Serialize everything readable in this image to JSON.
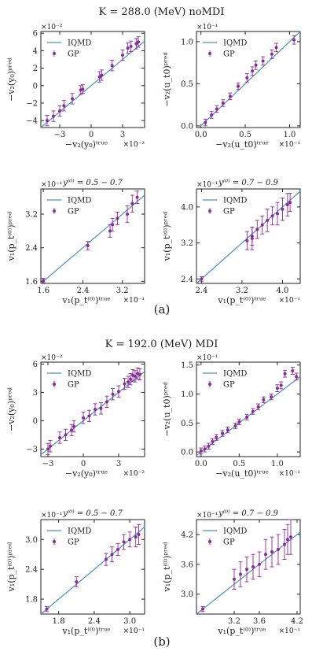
{
  "titles": [
    "K = 288.0 (MeV) noMDI",
    "K = 192.0 (MeV) MDI"
  ],
  "panel_labels": [
    "(a)",
    "(b)"
  ],
  "legend": {
    "line": "IQMD",
    "points": "GP"
  },
  "colors": {
    "line": "#4a90c2",
    "points": "#8b2a9a"
  },
  "chart_data": [
    {
      "type": "scatter",
      "group": "a",
      "xlabel": "−v₂(y₀)ᵗʳᵘᵉ",
      "ylabel": "−v₂(y₀)ᵖʳᵉᵈ",
      "exponent_x": "×10⁻²",
      "exponent_y": "×10⁻²",
      "xlim": [
        -4.8,
        5.1
      ],
      "ylim": [
        -4.8,
        6.2
      ],
      "xticks": [
        -3,
        0,
        3
      ],
      "xtick_labels": [
        "−3",
        "0",
        "3"
      ],
      "yticks": [
        -4,
        -2,
        0,
        2,
        4,
        6
      ],
      "ytick_labels": [
        "−4",
        "−2",
        "0",
        "2",
        "4",
        "6"
      ],
      "diagonal": true,
      "annotation": "",
      "legend_pos": "top-left",
      "points": [
        [
          -4.2,
          -4.0,
          0.6
        ],
        [
          -3.6,
          -3.5,
          0.6
        ],
        [
          -3.0,
          -2.9,
          0.6
        ],
        [
          -2.6,
          -2.3,
          0.6
        ],
        [
          -1.8,
          -1.5,
          0.6
        ],
        [
          -1.0,
          -0.5,
          0.5
        ],
        [
          -0.8,
          -0.4,
          0.5
        ],
        [
          0.8,
          1.0,
          0.6
        ],
        [
          1.0,
          1.2,
          0.6
        ],
        [
          2.0,
          2.3,
          0.6
        ],
        [
          3.0,
          3.5,
          0.6
        ],
        [
          3.5,
          4.3,
          0.6
        ],
        [
          3.8,
          4.5,
          0.6
        ],
        [
          4.3,
          4.8,
          0.6
        ],
        [
          4.5,
          5.0,
          0.6
        ]
      ]
    },
    {
      "type": "scatter",
      "group": "a",
      "xlabel": "−v₂(u_t0)ᵗʳᵘᵉ",
      "ylabel": "−v₂(u_t0)ᵖʳᵉᵈ",
      "exponent_x": "×10⁻¹",
      "exponent_y": "×10⁻¹",
      "xlim": [
        -0.05,
        1.12
      ],
      "ylim": [
        -0.02,
        1.12
      ],
      "xticks": [
        0,
        0.5,
        1.0
      ],
      "xtick_labels": [
        "0.0",
        "0.5",
        "1.0"
      ],
      "yticks": [
        0,
        0.5,
        1.0
      ],
      "ytick_labels": [
        "0.0",
        "0.5",
        "1.0"
      ],
      "diagonal": true,
      "annotation": "",
      "legend_pos": "top-left",
      "points": [
        [
          0.05,
          0.04,
          0.04
        ],
        [
          0.12,
          0.13,
          0.04
        ],
        [
          0.18,
          0.2,
          0.04
        ],
        [
          0.25,
          0.27,
          0.04
        ],
        [
          0.33,
          0.35,
          0.04
        ],
        [
          0.42,
          0.47,
          0.04
        ],
        [
          0.52,
          0.57,
          0.05
        ],
        [
          0.58,
          0.65,
          0.05
        ],
        [
          0.62,
          0.72,
          0.05
        ],
        [
          0.7,
          0.77,
          0.05
        ],
        [
          0.8,
          0.85,
          0.05
        ],
        [
          0.85,
          0.93,
          0.05
        ],
        [
          1.05,
          1.02,
          0.05
        ]
      ]
    },
    {
      "type": "scatter",
      "group": "a",
      "xlabel": "v₁(p_t⁽⁰⁾)ᵗʳᵘᵉ",
      "ylabel": "v₁(p_t⁽⁰⁾)ᵖʳᵉᵈ",
      "exponent_x": "×10⁻¹",
      "exponent_y": "×10⁻¹",
      "xlim": [
        1.55,
        3.65
      ],
      "ylim": [
        1.55,
        3.8
      ],
      "xticks": [
        1.6,
        2.4,
        3.2
      ],
      "xtick_labels": [
        "1.6",
        "2.4",
        "3.2"
      ],
      "yticks": [
        1.6,
        2.4,
        3.2
      ],
      "ytick_labels": [
        "1.6",
        "2.4",
        "3.2"
      ],
      "diagonal": true,
      "annotation": "y⁽⁰⁾ = 0.5 − 0.7",
      "legend_pos": "top-left",
      "points": [
        [
          1.6,
          1.62,
          0.05
        ],
        [
          2.5,
          2.45,
          0.1
        ],
        [
          2.95,
          2.8,
          0.15
        ],
        [
          3.0,
          2.95,
          0.15
        ],
        [
          3.1,
          3.1,
          0.15
        ],
        [
          3.3,
          3.2,
          0.2
        ],
        [
          3.4,
          3.45,
          0.2
        ],
        [
          3.5,
          3.6,
          0.15
        ]
      ]
    },
    {
      "type": "scatter",
      "group": "a",
      "xlabel": "v₁(p_t⁽⁰⁾)ᵗʳᵘᵉ",
      "ylabel": "v₁(p_t⁽⁰⁾)ᵖʳᵉᵈ",
      "exponent_x": "×10⁻¹",
      "exponent_y": "×10⁻¹",
      "xlim": [
        2.3,
        4.35
      ],
      "ylim": [
        2.3,
        4.4
      ],
      "xticks": [
        2.4,
        3.2,
        4.0
      ],
      "xtick_labels": [
        "2.4",
        "3.2",
        "4.0"
      ],
      "yticks": [
        2.4,
        3.2,
        4.0
      ],
      "ytick_labels": [
        "2.4",
        "3.2",
        "4.0"
      ],
      "diagonal": true,
      "annotation": "y⁽⁰⁾ = 0.7 − 0.9",
      "legend_pos": "top-left",
      "points": [
        [
          2.4,
          2.4,
          0.05
        ],
        [
          3.3,
          3.25,
          0.2
        ],
        [
          3.4,
          3.3,
          0.25
        ],
        [
          3.4,
          3.35,
          0.2
        ],
        [
          3.5,
          3.5,
          0.2
        ],
        [
          3.6,
          3.6,
          0.2
        ],
        [
          3.7,
          3.7,
          0.25
        ],
        [
          3.8,
          3.8,
          0.2
        ],
        [
          3.9,
          3.85,
          0.25
        ],
        [
          4.0,
          3.95,
          0.25
        ],
        [
          4.1,
          4.05,
          0.25
        ],
        [
          4.15,
          4.1,
          0.2
        ]
      ]
    },
    {
      "type": "scatter",
      "group": "b",
      "xlabel": "−v₂(y₀)ᵗʳᵘᵉ",
      "ylabel": "−v₂(y₀)ᵖʳᵉᵈ",
      "exponent_x": "×10⁻²",
      "exponent_y": "×10⁻²",
      "xlim": [
        -3.6,
        5.2
      ],
      "ylim": [
        -3.8,
        6.2
      ],
      "xticks": [
        -3,
        0,
        3
      ],
      "xtick_labels": [
        "−3",
        "0",
        "3"
      ],
      "yticks": [
        -3,
        0,
        3,
        6
      ],
      "ytick_labels": [
        "−3",
        "0",
        "3",
        "6"
      ],
      "diagonal": true,
      "annotation": "",
      "legend_pos": "top-left",
      "points": [
        [
          -3.0,
          -3.0,
          0.6
        ],
        [
          -2.8,
          -2.7,
          0.6
        ],
        [
          -2.0,
          -1.8,
          0.6
        ],
        [
          -1.5,
          -1.5,
          0.6
        ],
        [
          -1.0,
          -1.0,
          0.6
        ],
        [
          -0.8,
          -0.6,
          0.6
        ],
        [
          0.0,
          0.3,
          0.6
        ],
        [
          0.5,
          0.5,
          0.6
        ],
        [
          1.0,
          1.2,
          0.6
        ],
        [
          1.5,
          1.3,
          0.6
        ],
        [
          2.0,
          2.0,
          0.6
        ],
        [
          2.5,
          2.8,
          0.6
        ],
        [
          3.0,
          3.1,
          0.6
        ],
        [
          3.5,
          3.9,
          0.6
        ],
        [
          3.8,
          4.1,
          0.6
        ],
        [
          4.0,
          4.4,
          0.6
        ],
        [
          4.2,
          4.8,
          0.6
        ],
        [
          4.4,
          4.7,
          0.6
        ],
        [
          4.6,
          5.0,
          0.6
        ],
        [
          4.8,
          4.9,
          0.6
        ]
      ]
    },
    {
      "type": "scatter",
      "group": "b",
      "xlabel": "−v₂(u_t0)ᵗʳᵘᵉ",
      "ylabel": "−v₂(u_t0)ᵖʳᵉᵈ",
      "exponent_x": "×10⁻¹",
      "exponent_y": "×10⁻¹",
      "xlim": [
        -0.06,
        1.3
      ],
      "ylim": [
        -0.08,
        1.55
      ],
      "xticks": [
        0,
        0.5,
        1.0
      ],
      "xtick_labels": [
        "0.0",
        "0.5",
        "1.0"
      ],
      "yticks": [
        0,
        0.5,
        1.0,
        1.5
      ],
      "ytick_labels": [
        "0.0",
        "0.5",
        "1.0",
        "1.5"
      ],
      "diagonal": true,
      "annotation": "",
      "legend_pos": "top-left",
      "points": [
        [
          0.0,
          0.02,
          0.05
        ],
        [
          0.05,
          0.05,
          0.05
        ],
        [
          0.1,
          0.1,
          0.05
        ],
        [
          0.15,
          0.18,
          0.05
        ],
        [
          0.2,
          0.25,
          0.05
        ],
        [
          0.28,
          0.32,
          0.05
        ],
        [
          0.35,
          0.38,
          0.05
        ],
        [
          0.45,
          0.45,
          0.05
        ],
        [
          0.5,
          0.52,
          0.05
        ],
        [
          0.6,
          0.6,
          0.05
        ],
        [
          0.68,
          0.7,
          0.05
        ],
        [
          0.75,
          0.78,
          0.05
        ],
        [
          0.82,
          0.9,
          0.05
        ],
        [
          0.92,
          0.95,
          0.05
        ],
        [
          1.0,
          1.1,
          0.06
        ],
        [
          1.05,
          1.15,
          0.06
        ],
        [
          1.1,
          1.35,
          0.06
        ],
        [
          1.2,
          1.4,
          0.06
        ],
        [
          1.25,
          1.3,
          0.06
        ]
      ]
    },
    {
      "type": "scatter",
      "group": "b",
      "xlabel": "v₁(p_t⁽⁰⁾)ᵗʳᵘᵉ",
      "ylabel": "v₁(p_t⁽⁰⁾)ᵖʳᵉᵈ",
      "exponent_x": "×10⁻¹",
      "exponent_y": "×10⁻¹",
      "xlim": [
        1.5,
        3.25
      ],
      "ylim": [
        1.5,
        3.4
      ],
      "xticks": [
        1.8,
        2.4,
        3.0
      ],
      "xtick_labels": [
        "1.8",
        "2.4",
        "3.0"
      ],
      "yticks": [
        1.8,
        2.4,
        3.0
      ],
      "ytick_labels": [
        "1.8",
        "2.4",
        "3.0"
      ],
      "diagonal": true,
      "annotation": "y⁽⁰⁾ = 0.5 − 0.7",
      "legend_pos": "top-left",
      "points": [
        [
          1.6,
          1.6,
          0.05
        ],
        [
          2.1,
          2.15,
          0.1
        ],
        [
          2.6,
          2.6,
          0.12
        ],
        [
          2.7,
          2.7,
          0.15
        ],
        [
          2.8,
          2.8,
          0.12
        ],
        [
          2.9,
          2.95,
          0.15
        ],
        [
          3.0,
          3.0,
          0.15
        ],
        [
          3.1,
          3.05,
          0.2
        ],
        [
          3.15,
          3.1,
          0.2
        ]
      ]
    },
    {
      "type": "scatter",
      "group": "b",
      "xlabel": "v₁(p_t⁽⁰⁾)ᵗʳᵘᵉ",
      "ylabel": "v₁(p_t⁽⁰⁾)ᵖʳᵉᵈ",
      "exponent_x": "×10⁻¹",
      "exponent_y": "×10⁻¹",
      "xlim": [
        2.6,
        4.25
      ],
      "ylim": [
        2.6,
        4.5
      ],
      "xticks": [
        3.2,
        3.6,
        4.2
      ],
      "xtick_labels": [
        "3.2",
        "3.6",
        "4.2"
      ],
      "yticks": [
        3.0,
        3.6,
        4.2
      ],
      "ytick_labels": [
        "3.0",
        "3.6",
        "4.2"
      ],
      "diagonal": true,
      "annotation": "y⁽⁰⁾ = 0.7 − 0.9",
      "legend_pos": "top-left",
      "points": [
        [
          2.7,
          2.7,
          0.05
        ],
        [
          3.2,
          3.3,
          0.2
        ],
        [
          3.3,
          3.4,
          0.25
        ],
        [
          3.4,
          3.5,
          0.25
        ],
        [
          3.5,
          3.55,
          0.25
        ],
        [
          3.6,
          3.6,
          0.25
        ],
        [
          3.7,
          3.8,
          0.3
        ],
        [
          3.8,
          3.85,
          0.3
        ],
        [
          3.9,
          3.9,
          0.3
        ],
        [
          4.0,
          4.0,
          0.3
        ],
        [
          4.05,
          4.1,
          0.3
        ],
        [
          4.1,
          4.15,
          0.35
        ]
      ]
    }
  ]
}
